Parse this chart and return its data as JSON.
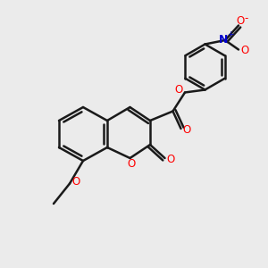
{
  "bg_color": "#ebebeb",
  "bond_color": "#1a1a1a",
  "oxygen_color": "#ff0000",
  "nitrogen_color": "#0000cc",
  "line_width": 1.8,
  "font_size": 8.5,
  "fig_size": [
    3.0,
    3.0
  ],
  "dpi": 100,
  "xlim": [
    0,
    10
  ],
  "ylim": [
    0,
    10
  ]
}
